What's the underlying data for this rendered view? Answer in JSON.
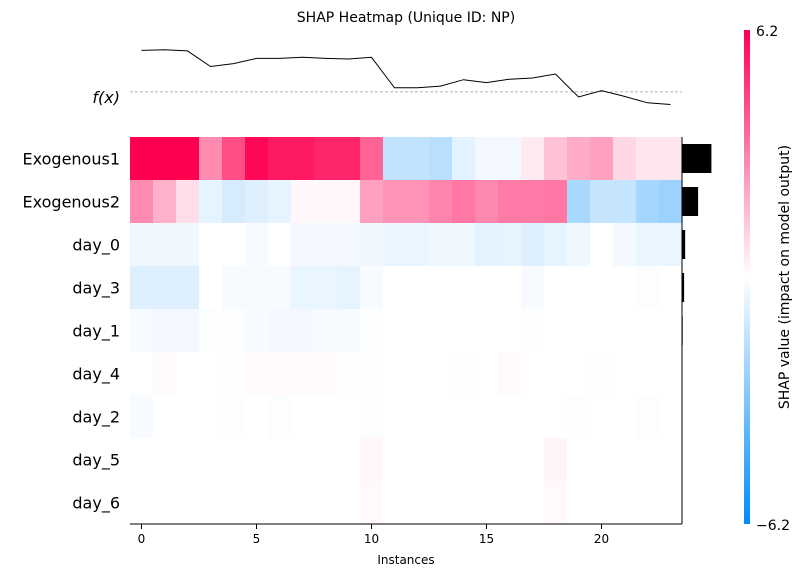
{
  "chart_data": {
    "type": "heatmap",
    "title": "SHAP Heatmap (Unique ID: NP)",
    "xlabel": "Instances",
    "fx_label": "f(x)",
    "colorbar_label": "SHAP value (impact on model output)",
    "colorbar_range": [
      -6.2,
      6.2
    ],
    "colorbar_max_label": "6.2",
    "colorbar_min_label": "−6.2",
    "colors": {
      "positive": "#ff0051",
      "negative": "#008bfb",
      "mid": "#ffffff",
      "bar": "#000000"
    },
    "x_ticks": [
      0,
      5,
      10,
      15,
      20
    ],
    "x_range": [
      -0.5,
      23.5
    ],
    "features": [
      "Exogenous1",
      "Exogenous2",
      "day_0",
      "day_3",
      "day_1",
      "day_4",
      "day_2",
      "day_5",
      "day_6"
    ],
    "values": [
      [
        6.2,
        6.2,
        6.2,
        2.8,
        4.3,
        6.0,
        5.6,
        5.6,
        5.3,
        5.3,
        3.8,
        -1.5,
        -1.5,
        -1.7,
        -0.7,
        -0.3,
        -0.3,
        0.5,
        1.5,
        2.0,
        2.3,
        1.0,
        0.6,
        0.6
      ],
      [
        2.8,
        1.9,
        0.8,
        -0.6,
        -1.0,
        -0.8,
        -0.6,
        0.2,
        0.2,
        0.2,
        2.3,
        2.6,
        2.6,
        3.0,
        3.3,
        2.9,
        3.2,
        3.2,
        3.3,
        -2.1,
        -1.4,
        -1.4,
        -2.2,
        -2.4
      ],
      [
        -0.4,
        -0.4,
        -0.4,
        0.0,
        0.0,
        -0.2,
        0.0,
        -0.3,
        -0.3,
        -0.3,
        -0.4,
        -0.5,
        -0.5,
        -0.4,
        -0.4,
        -0.7,
        -0.6,
        -0.8,
        -0.6,
        -0.4,
        0.0,
        -0.3,
        -0.5,
        -0.5
      ],
      [
        -0.8,
        -0.8,
        -0.8,
        0.0,
        -0.2,
        -0.2,
        -0.2,
        -0.5,
        -0.5,
        -0.6,
        -0.2,
        0.0,
        0.0,
        0.0,
        0.0,
        0.0,
        0.0,
        -0.2,
        0.0,
        0.0,
        0.0,
        0.0,
        -0.1,
        0.0
      ],
      [
        -0.2,
        -0.3,
        -0.3,
        -0.1,
        -0.1,
        -0.2,
        -0.3,
        -0.3,
        -0.2,
        -0.2,
        -0.1,
        0.0,
        0.0,
        0.0,
        0.0,
        0.0,
        0.0,
        -0.1,
        0.0,
        0.0,
        0.0,
        0.0,
        0.0,
        0.0
      ],
      [
        0.0,
        0.1,
        0.0,
        0.0,
        0.05,
        0.1,
        0.1,
        0.1,
        0.1,
        0.05,
        0.05,
        0.0,
        0.0,
        0.0,
        0.05,
        0.0,
        0.1,
        0.0,
        0.0,
        0.0,
        0.05,
        0.0,
        0.0,
        0.0
      ],
      [
        -0.2,
        0.0,
        0.0,
        0.0,
        -0.1,
        0.0,
        -0.1,
        0.0,
        0.0,
        0.0,
        -0.1,
        0.0,
        0.0,
        0.0,
        0.0,
        0.0,
        0.0,
        0.0,
        0.0,
        -0.1,
        0.0,
        0.0,
        -0.1,
        0.0
      ],
      [
        0.0,
        0.0,
        0.0,
        0.0,
        0.0,
        0.0,
        0.0,
        0.0,
        0.0,
        0.0,
        0.2,
        0.0,
        0.0,
        0.0,
        0.0,
        0.0,
        0.0,
        0.0,
        0.25,
        0.0,
        0.0,
        0.0,
        0.0,
        0.0
      ],
      [
        0.0,
        0.0,
        0.0,
        0.0,
        0.0,
        0.0,
        0.0,
        0.0,
        0.0,
        0.0,
        0.15,
        0.0,
        0.0,
        0.0,
        0.0,
        0.0,
        0.0,
        0.0,
        0.15,
        0.0,
        0.0,
        0.0,
        0.0,
        0.0
      ]
    ],
    "feature_importance": [
      4.2,
      2.3,
      0.45,
      0.3,
      0.1,
      0.05,
      0.05,
      0.02,
      0.02
    ],
    "importance_max": 5,
    "fx": [
      7.2,
      7.3,
      7.1,
      4.4,
      4.9,
      5.8,
      5.8,
      6.0,
      5.8,
      5.7,
      6.0,
      0.7,
      0.7,
      1.0,
      2.1,
      1.6,
      2.2,
      2.4,
      3.1,
      -0.9,
      0.2,
      -0.8,
      -1.9,
      -2.2
    ],
    "fx_range": [
      -3.5,
      9.0
    ],
    "fx_baseline": 0.0
  }
}
